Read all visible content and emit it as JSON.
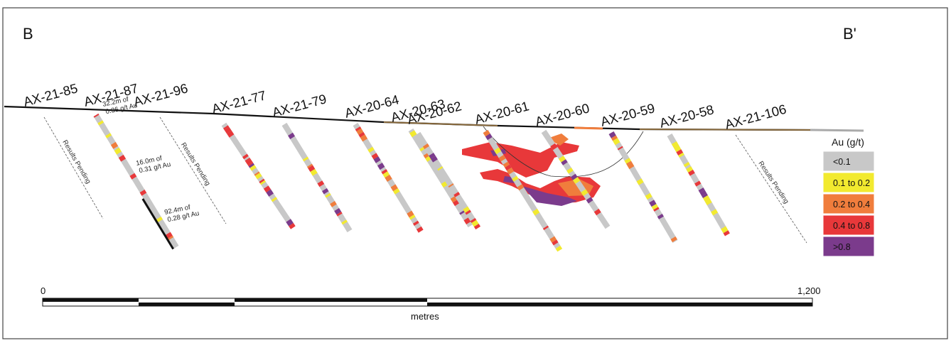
{
  "section": {
    "start_label": "B",
    "end_label": "B'"
  },
  "holes": [
    {
      "id": "AX-21-85",
      "label": "AX-21-85",
      "pending": true
    },
    {
      "id": "AX-21-87",
      "label": "AX-21-87",
      "pending": false
    },
    {
      "id": "AX-21-96",
      "label": "AX-21-96",
      "pending": true
    },
    {
      "id": "AX-21-77",
      "label": "AX-21-77",
      "pending": false
    },
    {
      "id": "AX-21-79",
      "label": "AX-21-79",
      "pending": false
    },
    {
      "id": "AX-20-64",
      "label": "AX-20-64",
      "pending": false
    },
    {
      "id": "AX-20-63",
      "label": "AX-20-63",
      "pending": false
    },
    {
      "id": "AX-20-62",
      "label": "AX-20-62",
      "pending": false
    },
    {
      "id": "AX-20-61",
      "label": "AX-20-61",
      "pending": false
    },
    {
      "id": "AX-20-60",
      "label": "AX-20-60",
      "pending": false
    },
    {
      "id": "AX-20-59",
      "label": "AX-20-59",
      "pending": false
    },
    {
      "id": "AX-20-58",
      "label": "AX-20-58",
      "pending": false
    },
    {
      "id": "AX-21-106",
      "label": "AX-21-106",
      "pending": true
    }
  ],
  "pending_text": "Results Pending",
  "intercepts": [
    {
      "line1": "32.2m of",
      "line2": "0.36 g/t Au"
    },
    {
      "line1": "16.0m of",
      "line2": "0.31 g/t Au"
    },
    {
      "line1": "92.4m of",
      "line2": "0.28 g/t Au"
    }
  ],
  "legend": {
    "title": "Au (g/t)",
    "items": [
      {
        "label": "<0.1",
        "color": "#c8c8c8"
      },
      {
        "label": "0.1 to 0.2",
        "color": "#f2ea2f"
      },
      {
        "label": "0.2 to 0.4",
        "color": "#f07d3c"
      },
      {
        "label": "0.4 to 0.8",
        "color": "#e8383a"
      },
      {
        "label": ">0.8",
        "color": "#7b3b8c"
      }
    ]
  },
  "scale": {
    "min_label": "0",
    "max_label": "1,200",
    "unit": "metres"
  }
}
